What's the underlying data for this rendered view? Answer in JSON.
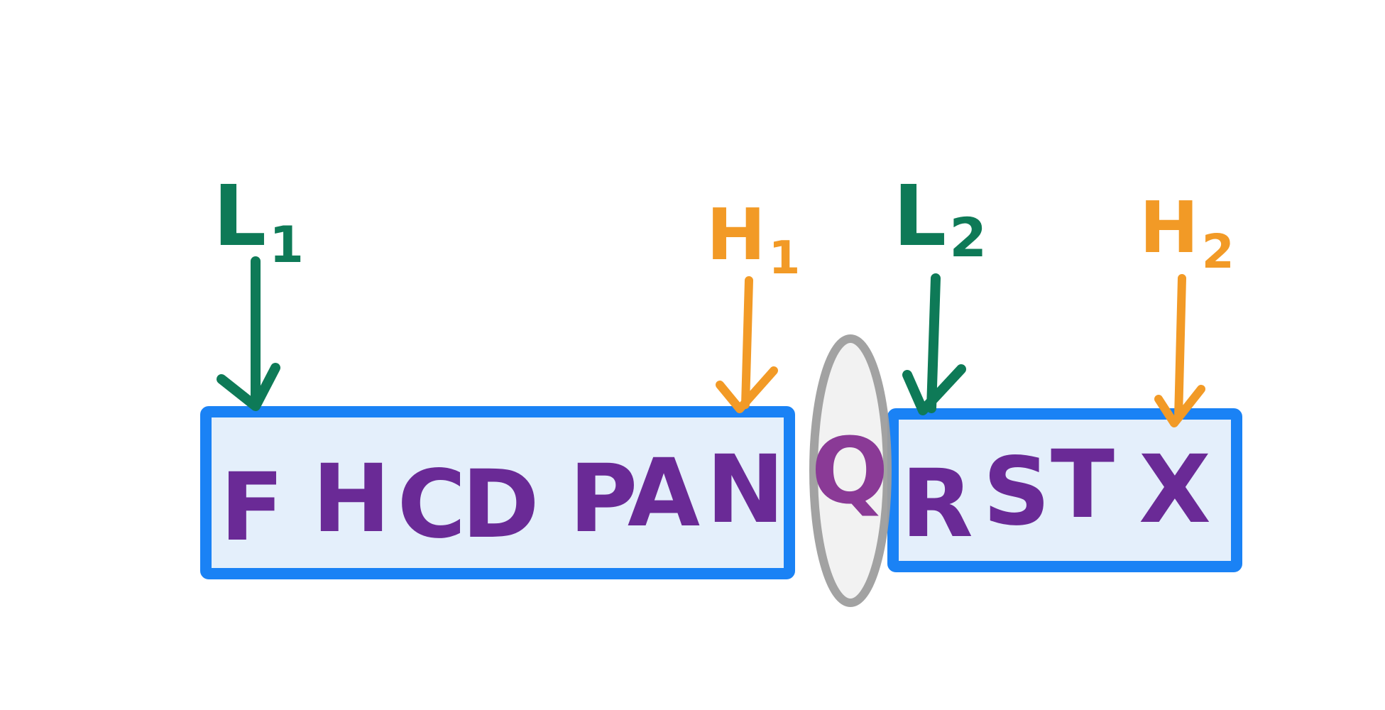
{
  "colors": {
    "low_pointer": "#0e7a57",
    "high_pointer": "#f29a26",
    "letters": "#6a2a96",
    "box_border": "#1a82f5",
    "box_fill": "#e4effb",
    "oval_border": "#9e9e9e",
    "oval_fill": "#f2f2f2",
    "oval_letter": "#8a3a96"
  },
  "pointers": [
    {
      "name": "L",
      "sub": "1",
      "kind": "low"
    },
    {
      "name": "H",
      "sub": "1",
      "kind": "high"
    },
    {
      "name": "L",
      "sub": "2",
      "kind": "low"
    },
    {
      "name": "H",
      "sub": "2",
      "kind": "high"
    }
  ],
  "left_half": {
    "letters": [
      "F",
      "H",
      "C",
      "D",
      "P",
      "A",
      "N"
    ]
  },
  "middle": {
    "letter": "Q"
  },
  "right_half": {
    "letters": [
      "R",
      "S",
      "T",
      "X"
    ]
  }
}
